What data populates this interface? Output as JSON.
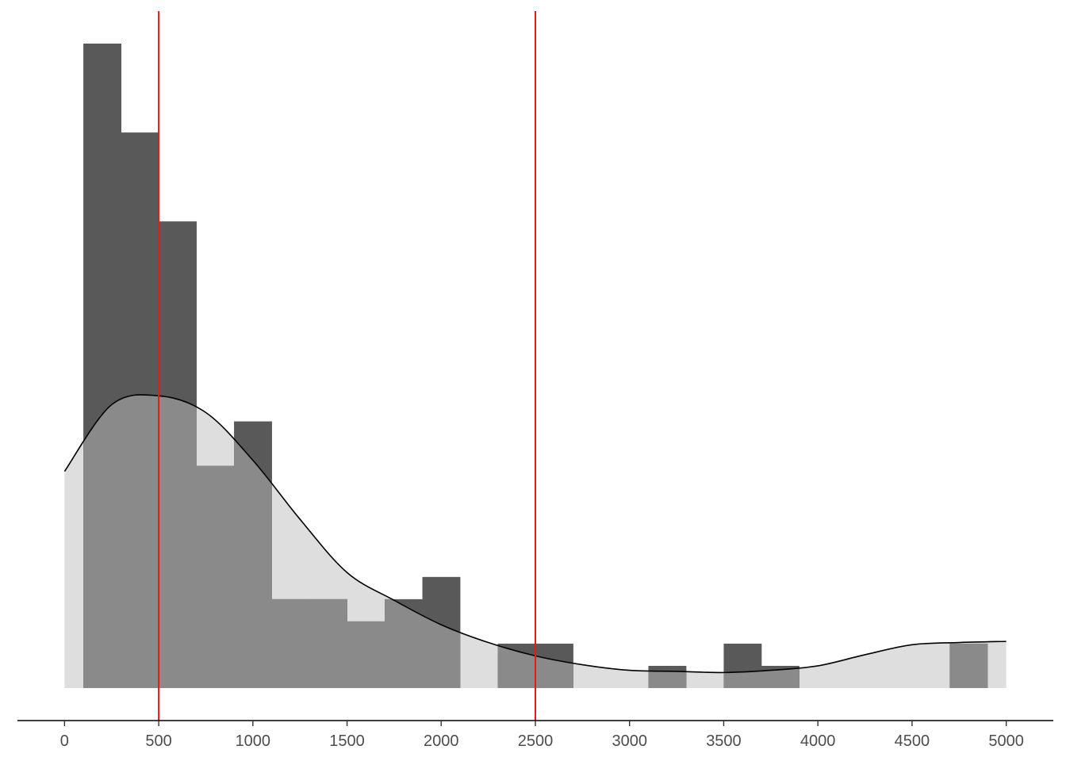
{
  "chart_data": {
    "type": "bar",
    "title": "",
    "xlabel": "",
    "ylabel": "",
    "xlim": [
      -250,
      5250
    ],
    "ylim": [
      0,
      29
    ],
    "bin_width": 200,
    "x_ticks": [
      0,
      500,
      1000,
      1500,
      2000,
      2500,
      3000,
      3500,
      4000,
      4500,
      5000
    ],
    "x_tick_labels": [
      "0",
      "500",
      "1000",
      "1500",
      "2000",
      "2500",
      "3000",
      "3500",
      "4000",
      "4500",
      "5000"
    ],
    "density_background": {
      "color": "#dedede",
      "x": [
        0,
        250,
        500,
        750,
        1000,
        1250,
        1500,
        1750,
        2000,
        2250,
        2500,
        2750,
        3000,
        3250,
        3500,
        3750,
        4000,
        4250,
        4500,
        4750,
        5000
      ],
      "y": [
        9.75,
        12.75,
        13.15,
        12.4,
        10.25,
        7.6,
        5.2,
        3.95,
        2.85,
        2.05,
        1.45,
        1.05,
        0.8,
        0.75,
        0.7,
        0.8,
        1.0,
        1.5,
        1.95,
        2.05,
        2.1
      ]
    },
    "series": [
      {
        "color": "#595959",
        "bins_start": [
          100,
          300,
          500,
          700,
          900,
          1100,
          1300,
          1500,
          1700,
          1900,
          2100,
          2300,
          2500,
          2700,
          2900,
          3100,
          3300,
          3500,
          3700,
          3900,
          4100,
          4300,
          4500,
          4700
        ],
        "values": [
          29,
          25,
          21,
          10,
          12,
          4,
          4,
          3,
          4,
          5,
          0,
          2,
          2,
          0,
          0,
          1,
          0,
          2,
          1,
          0,
          0,
          0,
          0,
          2
        ]
      }
    ],
    "density_curve": {
      "color": "#000000",
      "x": [
        0,
        250,
        500,
        750,
        1000,
        1250,
        1500,
        1750,
        2000,
        2250,
        2500,
        2750,
        3000,
        3250,
        3500,
        3750,
        4000,
        4250,
        4500,
        4750,
        5000
      ],
      "y": [
        9.75,
        12.75,
        13.15,
        12.4,
        10.25,
        7.6,
        5.2,
        3.95,
        2.85,
        2.05,
        1.45,
        1.05,
        0.8,
        0.75,
        0.7,
        0.8,
        1.0,
        1.5,
        1.95,
        2.05,
        2.1
      ]
    },
    "reference_lines": [
      {
        "x": 500,
        "color": "#e41a1c"
      },
      {
        "x": 2500,
        "color": "#e41a1c"
      }
    ],
    "overlap_color": "#8a8a8a",
    "axis_color": "#000000",
    "grid": false
  }
}
